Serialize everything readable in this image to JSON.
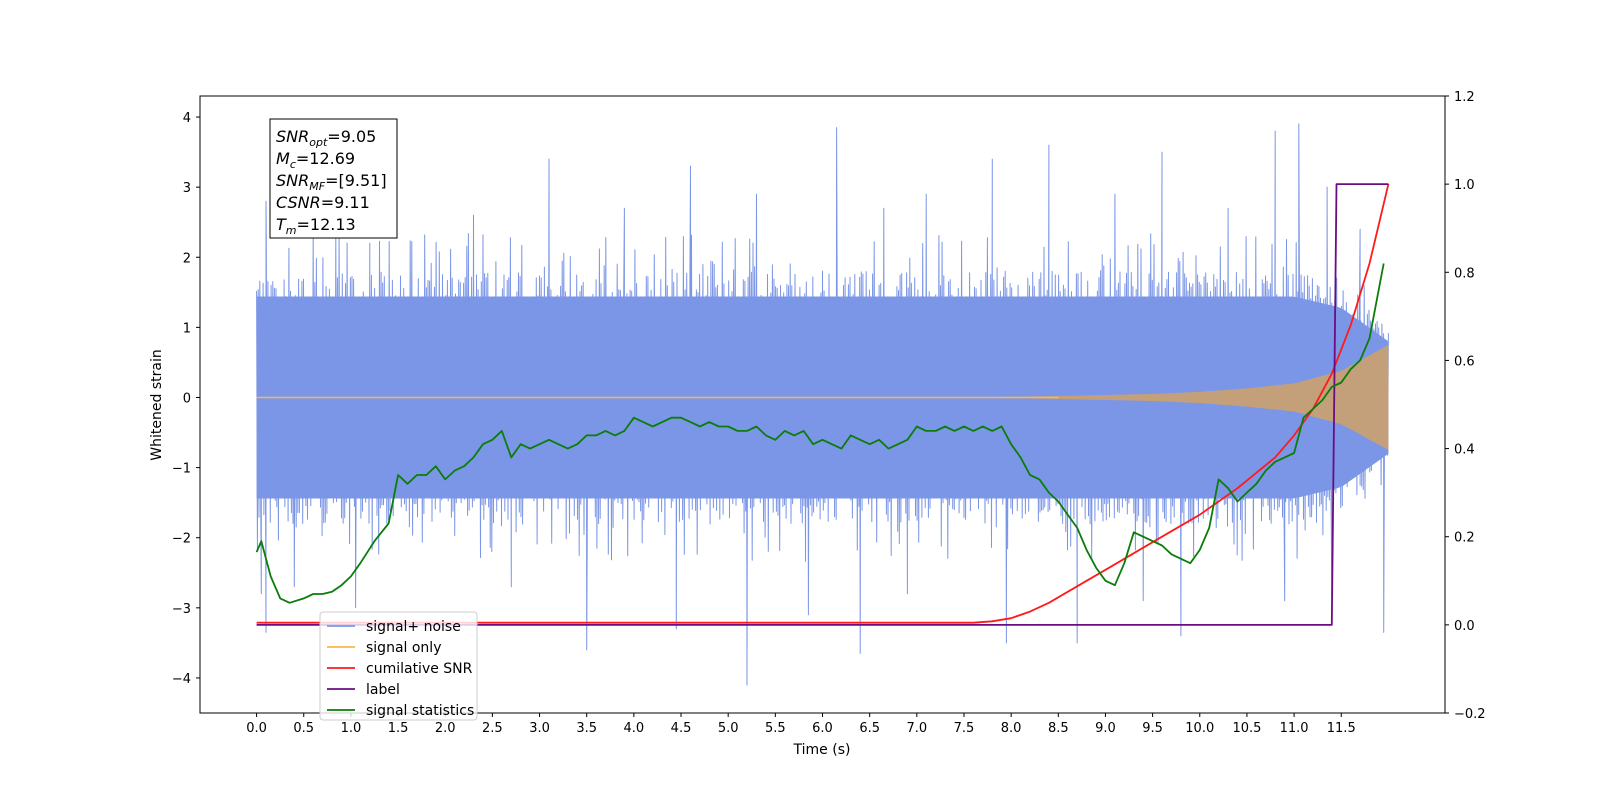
{
  "chart_data": {
    "type": "line",
    "xlabel": "Time (s)",
    "ylabel": "Whitened strain",
    "xlim": [
      -0.6,
      12.6
    ],
    "ylim_left": [
      -4.5,
      4.3
    ],
    "ylim_right": [
      -0.2,
      1.2
    ],
    "x_ticks": [
      0.0,
      0.5,
      1.0,
      1.5,
      2.0,
      2.5,
      3.0,
      3.5,
      4.0,
      4.5,
      5.0,
      5.5,
      6.0,
      6.5,
      7.0,
      7.5,
      8.0,
      8.5,
      9.0,
      9.5,
      10.0,
      10.5,
      11.0,
      11.5
    ],
    "x_tick_labels": [
      "0.0",
      "0.5",
      "1.0",
      "1.5",
      "2.0",
      "2.5",
      "3.0",
      "3.5",
      "4.0",
      "4.5",
      "5.0",
      "5.5",
      "6.0",
      "6.5",
      "7.0",
      "7.5",
      "8.0",
      "8.5",
      "9.0",
      "9.5",
      "10.0",
      "10.5",
      "11.0",
      "11.5"
    ],
    "y_left_ticks": [
      4,
      3,
      2,
      1,
      0,
      -1,
      -2,
      -3,
      -4
    ],
    "y_left_tick_labels": [
      "4",
      "3",
      "2",
      "1",
      "0",
      "−1",
      "−2",
      "−3",
      "−4"
    ],
    "y_right_ticks": [
      1.2,
      1.0,
      0.8,
      0.6,
      0.4,
      0.2,
      0.0,
      -0.2
    ],
    "y_right_tick_labels": [
      "1.2",
      "1.0",
      "0.8",
      "0.6",
      "0.4",
      "0.2",
      "0.0",
      "−0.2"
    ],
    "grid": false,
    "legend_position": "lower-left",
    "stats_box": {
      "lines": [
        {
          "label": "SNR",
          "sub": "opt",
          "value": "=9.05"
        },
        {
          "label": "M",
          "sub": "c",
          "value": "=12.69"
        },
        {
          "label": "SNR",
          "sub": "MF",
          "value": "=[9.51]"
        },
        {
          "label": "CSNR",
          "sub": "",
          "value": "=9.11"
        },
        {
          "label": "T",
          "sub": "m",
          "value": "=12.13"
        }
      ]
    },
    "series": [
      {
        "name": "signal+ noise",
        "axis": "left",
        "color": "#7b96e6",
        "envelope": {
          "x": [
            0,
            1,
            2,
            3,
            4,
            5,
            6,
            7,
            8,
            9,
            10,
            11,
            11.5,
            12
          ],
          "upper": [
            1.8,
            1.8,
            1.8,
            1.8,
            1.8,
            1.8,
            1.8,
            1.8,
            1.8,
            1.8,
            1.8,
            1.8,
            1.6,
            1.0
          ],
          "lower": [
            -1.8,
            -1.8,
            -1.8,
            -1.8,
            -1.8,
            -1.8,
            -1.8,
            -1.8,
            -1.8,
            -1.8,
            -1.8,
            -1.8,
            -1.6,
            -1.0
          ]
        },
        "peaks": [
          [
            0.1,
            2.8
          ],
          [
            0.6,
            2.5
          ],
          [
            1.2,
            2.2
          ],
          [
            2.3,
            2.6
          ],
          [
            3.1,
            3.4
          ],
          [
            3.9,
            2.7
          ],
          [
            4.6,
            3.3
          ],
          [
            5.3,
            2.9
          ],
          [
            6.15,
            3.85
          ],
          [
            6.65,
            2.7
          ],
          [
            7.1,
            2.9
          ],
          [
            7.8,
            3.4
          ],
          [
            8.4,
            3.6
          ],
          [
            9.1,
            2.9
          ],
          [
            9.6,
            3.5
          ],
          [
            10.3,
            2.7
          ],
          [
            10.8,
            3.8
          ],
          [
            11.05,
            3.9
          ],
          [
            11.35,
            3.0
          ],
          [
            11.7,
            2.4
          ]
        ],
        "troughs": [
          [
            0.05,
            -2.8
          ],
          [
            0.1,
            -3.35
          ],
          [
            0.4,
            -2.7
          ],
          [
            1.05,
            -3.0
          ],
          [
            2.7,
            -2.7
          ],
          [
            3.5,
            -3.6
          ],
          [
            4.45,
            -3.3
          ],
          [
            5.2,
            -4.1
          ],
          [
            5.85,
            -3.1
          ],
          [
            6.4,
            -3.65
          ],
          [
            6.9,
            -2.8
          ],
          [
            7.95,
            -3.5
          ],
          [
            8.7,
            -3.5
          ],
          [
            9.4,
            -2.9
          ],
          [
            9.8,
            -3.4
          ],
          [
            10.9,
            -2.9
          ],
          [
            11.4,
            -2.85
          ],
          [
            11.95,
            -3.35
          ]
        ]
      },
      {
        "name": "signal only",
        "axis": "left",
        "color": "#ffb54d",
        "fill_color": "#c4a07a",
        "envelope": {
          "x": [
            0,
            7.5,
            8.5,
            9.5,
            10,
            10.5,
            11,
            11.5,
            12
          ],
          "amp": [
            0.0,
            0.0,
            0.02,
            0.05,
            0.08,
            0.13,
            0.2,
            0.38,
            0.75
          ]
        }
      },
      {
        "name": "cumilative SNR",
        "axis": "right",
        "color": "#ff1a1a",
        "x": [
          0,
          7.6,
          7.8,
          8.0,
          8.2,
          8.4,
          8.6,
          8.8,
          9.0,
          9.2,
          9.4,
          9.6,
          9.8,
          10.0,
          10.2,
          10.4,
          10.6,
          10.8,
          11.0,
          11.2,
          11.4,
          11.6,
          11.8,
          12.0
        ],
        "y": [
          0.005,
          0.005,
          0.008,
          0.015,
          0.03,
          0.05,
          0.075,
          0.1,
          0.125,
          0.15,
          0.175,
          0.2,
          0.225,
          0.25,
          0.28,
          0.31,
          0.345,
          0.38,
          0.43,
          0.49,
          0.57,
          0.68,
          0.82,
          1.0
        ]
      },
      {
        "name": "label",
        "axis": "right",
        "color": "#6a0d83",
        "x": [
          0,
          11.4,
          11.45,
          12.0
        ],
        "y": [
          0.0,
          0.0,
          1.0,
          1.0
        ]
      },
      {
        "name": "signal statistics",
        "axis": "right",
        "color": "#0a7d0a",
        "x": [
          0.0,
          0.05,
          0.15,
          0.25,
          0.35,
          0.5,
          0.6,
          0.7,
          0.8,
          0.9,
          1.0,
          1.1,
          1.25,
          1.4,
          1.5,
          1.6,
          1.7,
          1.8,
          1.9,
          2.0,
          2.1,
          2.2,
          2.3,
          2.4,
          2.5,
          2.6,
          2.7,
          2.8,
          2.9,
          3.0,
          3.1,
          3.2,
          3.3,
          3.4,
          3.5,
          3.6,
          3.7,
          3.8,
          3.9,
          4.0,
          4.1,
          4.2,
          4.3,
          4.4,
          4.5,
          4.6,
          4.7,
          4.8,
          4.9,
          5.0,
          5.1,
          5.2,
          5.3,
          5.4,
          5.5,
          5.6,
          5.7,
          5.8,
          5.9,
          6.0,
          6.1,
          6.2,
          6.3,
          6.4,
          6.5,
          6.6,
          6.7,
          6.8,
          6.9,
          7.0,
          7.1,
          7.2,
          7.3,
          7.4,
          7.5,
          7.6,
          7.7,
          7.8,
          7.9,
          8.0,
          8.1,
          8.2,
          8.3,
          8.4,
          8.5,
          8.6,
          8.7,
          8.8,
          8.9,
          9.0,
          9.1,
          9.2,
          9.3,
          9.4,
          9.5,
          9.6,
          9.7,
          9.8,
          9.9,
          10.0,
          10.1,
          10.2,
          10.3,
          10.4,
          10.5,
          10.6,
          10.7,
          10.8,
          10.9,
          11.0,
          11.1,
          11.2,
          11.3,
          11.4,
          11.5,
          11.6,
          11.7,
          11.8,
          11.95
        ],
        "y": [
          0.165,
          0.19,
          0.11,
          0.06,
          0.05,
          0.06,
          0.07,
          0.07,
          0.075,
          0.09,
          0.11,
          0.14,
          0.19,
          0.23,
          0.34,
          0.32,
          0.34,
          0.34,
          0.36,
          0.33,
          0.35,
          0.36,
          0.38,
          0.41,
          0.42,
          0.44,
          0.38,
          0.41,
          0.4,
          0.41,
          0.42,
          0.41,
          0.4,
          0.41,
          0.43,
          0.43,
          0.44,
          0.43,
          0.44,
          0.47,
          0.46,
          0.45,
          0.46,
          0.47,
          0.47,
          0.46,
          0.45,
          0.46,
          0.45,
          0.45,
          0.44,
          0.44,
          0.45,
          0.43,
          0.42,
          0.44,
          0.43,
          0.44,
          0.41,
          0.42,
          0.41,
          0.4,
          0.43,
          0.42,
          0.41,
          0.42,
          0.4,
          0.41,
          0.42,
          0.45,
          0.44,
          0.44,
          0.45,
          0.44,
          0.45,
          0.44,
          0.45,
          0.44,
          0.45,
          0.41,
          0.38,
          0.34,
          0.33,
          0.3,
          0.28,
          0.25,
          0.22,
          0.17,
          0.13,
          0.1,
          0.09,
          0.14,
          0.21,
          0.2,
          0.19,
          0.18,
          0.16,
          0.15,
          0.14,
          0.17,
          0.22,
          0.33,
          0.31,
          0.28,
          0.3,
          0.32,
          0.35,
          0.37,
          0.38,
          0.39,
          0.47,
          0.49,
          0.51,
          0.54,
          0.55,
          0.58,
          0.6,
          0.65,
          0.82
        ]
      }
    ]
  }
}
